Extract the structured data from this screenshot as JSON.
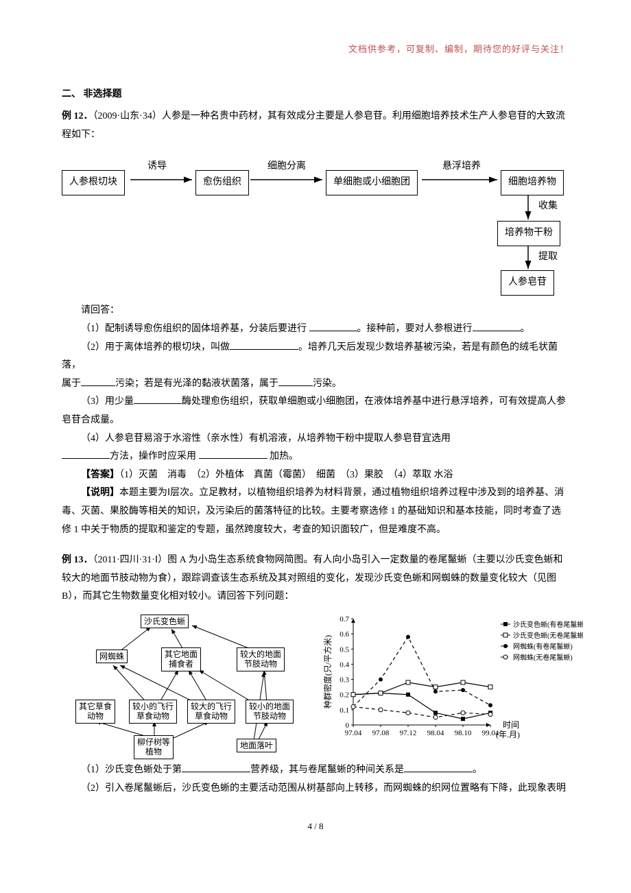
{
  "header_note": "文档供参考，可复制、编制，期待您的好评与关注！",
  "section_title": "二、 非选择题",
  "ex12": {
    "label": "例 12．",
    "source": "（2009·山东·34）",
    "intro": "人参是一种名贵中药材，其有效成分主要是人参皂苷。利用细胞培养技术生产人参皂苷的大致流程如下：",
    "flow": {
      "boxes": {
        "b1": "人参根切块",
        "b2": "愈伤组织",
        "b3": "单细胞或小细胞团",
        "b4": "细胞培养物",
        "b5": "培养物干粉",
        "b6": "人参皂苷"
      },
      "arrows": {
        "a1": "诱导",
        "a2": "细胞分离",
        "a3": "悬浮培养",
        "a4": "收集",
        "a5": "提取"
      }
    },
    "qprefix": "请回答：",
    "q1a": "（1）配制诱导愈伤组织的固体培养基，分装后要进行 ",
    "q1b": "。接种前，要对人参根进行",
    "q1c": "。",
    "q2a": "（2）用于离体培养的根切块，叫做",
    "q2b": "。培养几天后发现少数培养基被污染，若是有颜色的绒毛状菌落，",
    "q2c": "属于",
    "q2d": "污染；若是有光泽的黏液状菌落，属于",
    "q2e": "污染。",
    "q3a": "（3）用少量",
    "q3b": "酶处理愈伤组织，获取单细胞或小细胞团，在液体培养基中进行悬浮培养，可有效提高人参皂苷合成量。",
    "q4a": "（4）人参皂苷易溶于水溶性（亲水性）有机溶液，从培养物干粉中提取人参皂苷宜选用",
    "q4b": "方法，操作时应采用 ",
    "q4c": " 加热。",
    "ans_label": "【答案】",
    "ans_text": "（1）灭菌　消毒　（2）外植体　真菌（霉菌）　细菌　（3）果胶　（4）萃取 水浴",
    "note_label": "【说明】",
    "note_text": "本题主要为Ⅰ层次。立足教材，以植物组织培养为材料背景，通过植物组织培养过程中涉及到的培养基、消毒、灭菌、果胶酶等相关的知识，及污染后的菌落特征的比较。主要考察选修 1 的基础知识和基本技能，同时考查了选修 1 中关于物质的提取和鉴定的专题，虽然跨度较大，考查的知识面较广，但是难度不高。"
  },
  "ex13": {
    "label": "例 13．",
    "source": "（2011·四川·31·Ⅰ）",
    "intro": "图 A 为小岛生态系统食物网简图。有人向小岛引入一定数量的卷尾鬣蜥（主要以沙氏变色蜥和较大的地面节肢动物为食），跟踪调查该生态系统及其对照组的变化，发现沙氏变色蜥和网蜘蛛的数量变化较大（见图 B），而其它生物数量变化相对较小。请回答下列问题：",
    "foodweb": {
      "n_top": "沙氏变色蜥",
      "n_spider": "网蜘蛛",
      "n_pred": "其它地面\n捕食者",
      "n_bigarth": "较大的地面\n节肢动物",
      "n_herb": "其它草食\n动物",
      "n_smallfly": "较小的飞行\n草食动物",
      "n_bigfly": "较大的飞行\n草食动物",
      "n_smallarth": "较小的地面\n节肢动物",
      "n_plant": "柳仔树等\n植物",
      "n_leaf": "地面落叶"
    },
    "chart": {
      "ylabel": "种群密度(只/平方米)",
      "xlabel_time": "时间",
      "xlabel_unit": "(年.月)",
      "xticks": [
        "97.04",
        "97.08",
        "97.12",
        "98.04",
        "98.10",
        "99.04"
      ],
      "yticks": [
        "0",
        "0.1",
        "0.2",
        "0.3",
        "0.4",
        "0.5",
        "0.6",
        "0.7"
      ],
      "ylim": [
        0,
        0.7
      ],
      "legend": {
        "l1": "沙氏变色蜥(有卷尾鬣蜥)",
        "l2": "沙氏变色蜥(无卷尾鬣蜥)",
        "l3": "网蜘蛛(有卷尾鬣蜥)",
        "l4": "网蜘蛛(无卷尾鬣蜥)"
      },
      "series": {
        "s1_filled_solid": {
          "x": [
            0,
            1,
            2,
            3,
            4,
            5
          ],
          "y": [
            0.2,
            0.21,
            0.2,
            0.08,
            0.04,
            0.08
          ],
          "marker": "square-filled",
          "dash": "solid"
        },
        "s2_open_solid": {
          "x": [
            0,
            1,
            2,
            3,
            4,
            5
          ],
          "y": [
            0.2,
            0.21,
            0.28,
            0.25,
            0.28,
            0.25
          ],
          "marker": "square-open",
          "dash": "solid"
        },
        "s3_filled_dash": {
          "x": [
            0,
            1,
            2,
            3,
            4,
            5
          ],
          "y": [
            0.12,
            0.3,
            0.58,
            0.22,
            0.23,
            0.13
          ],
          "marker": "circle-filled",
          "dash": "dash"
        },
        "s4_open_dash": {
          "x": [
            0,
            1,
            2,
            3,
            4,
            5
          ],
          "y": [
            0.12,
            0.1,
            0.08,
            0.05,
            0.08,
            0.07
          ],
          "marker": "circle-open",
          "dash": "dash"
        }
      },
      "colors": {
        "stroke": "#000000",
        "bg": "#ffffff"
      }
    },
    "q1a": "（1）沙氏变色蜥处于第",
    "q1b": "营养级，其与卷尾鬣蜥的种间关系是",
    "q1c": "。",
    "q2": "（2）引入卷尾鬣蜥后，沙氏变色蜥的主要活动范围从树基部向上转移，而网蜘蛛的织网位置略有下降，此现象表明"
  },
  "footer": "4 / 8"
}
